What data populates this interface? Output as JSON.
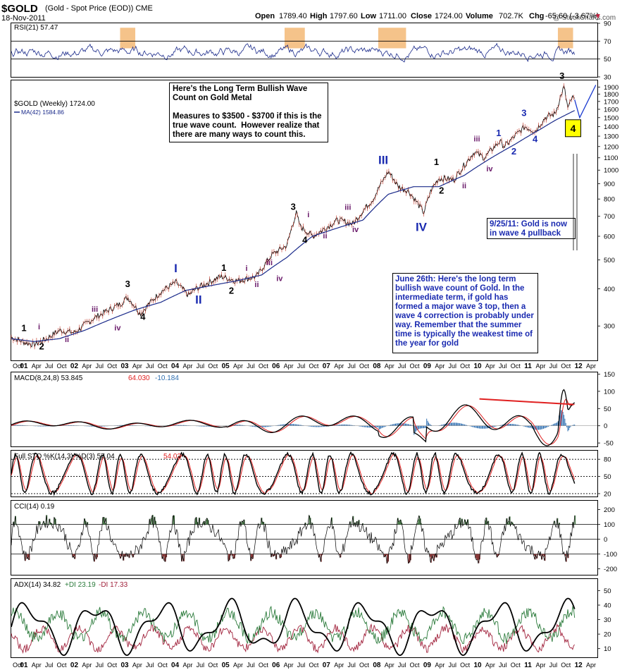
{
  "chart_data": {
    "type": "line",
    "symbol": "$GOLD",
    "title": "(Gold - Spot Price (EOD)) CME",
    "date": "18-Nov-2011",
    "watermark": "@ StockCharts.com",
    "quote": {
      "open_label": "Open",
      "open": "1789.40",
      "high_label": "High",
      "high": "1797.60",
      "low_label": "Low",
      "low": "1711.00",
      "close_label": "Close",
      "close": "1724.00",
      "volume_label": "Volume",
      "volume": "702.7K",
      "chg_label": "Chg",
      "chg": "-65.60 (-3.67%)"
    },
    "colors": {
      "price": "#000000",
      "ma": "#1a2a8a",
      "rsi": "#1a2a8a",
      "macd_signal": "#e02020",
      "histogram": "#2f6fb0",
      "cci_fill": "#4a7a4a",
      "adx_pos_di": "#2a7a3a",
      "adx_neg_di": "#a0203a",
      "highlight": "#f5c38a",
      "wave_blue": "#1a2ab0",
      "wave_purple": "#6a1a6a",
      "box_yellow": "#ffff00"
    },
    "x_axis": {
      "ticks": [
        "Oct",
        "01",
        "Apr",
        "Jul",
        "Oct",
        "02",
        "Apr",
        "Jul",
        "Oct",
        "03",
        "Apr",
        "Jul",
        "Oct",
        "04",
        "Apr",
        "Jul",
        "Oct",
        "05",
        "Apr",
        "Jul",
        "Oct",
        "06",
        "Apr",
        "Jul",
        "Oct",
        "07",
        "Apr",
        "Jul",
        "Oct",
        "08",
        "Apr",
        "Jul",
        "Oct",
        "09",
        "Apr",
        "Jul",
        "Oct",
        "10",
        "Apr",
        "Jul",
        "Oct",
        "11",
        "Apr",
        "Jul",
        "Oct",
        "12",
        "Apr"
      ],
      "start": 2000.75,
      "end": 2012.33
    },
    "panels": {
      "rsi": {
        "label": "RSI(21) 57.47",
        "ylim": [
          30,
          90
        ],
        "ticks": [
          "90",
          "70",
          "50",
          "30"
        ],
        "levels": [
          70,
          50
        ],
        "highlights": [
          [
            2002.9,
            2003.2
          ],
          [
            2006.15,
            2006.55
          ],
          [
            2008.0,
            2008.55
          ],
          [
            2011.55,
            2011.85
          ]
        ]
      },
      "price": {
        "label": "$GOLD (Weekly) 1724.00",
        "ma_label": "MA(42) 1584.86",
        "scale": "log",
        "ylim": [
          230,
          2000
        ],
        "ticks": [
          "1900",
          "1800",
          "1700",
          "1600",
          "1500",
          "1400",
          "1300",
          "1200",
          "1100",
          "1000",
          "900",
          "800",
          "700",
          "600",
          "500",
          "400",
          "300"
        ],
        "series": [
          {
            "x": [
              2000.75,
              2001.0,
              2001.2,
              2001.45,
              2001.7,
              2002.0,
              2002.4,
              2002.9,
              2003.05,
              2003.3,
              2003.7,
              2004.0,
              2004.25,
              2004.4,
              2004.9,
              2005.2,
              2005.6,
              2005.9,
              2006.2,
              2006.38,
              2006.45,
              2006.7,
              2006.9,
              2007.2,
              2007.5,
              2007.9,
              2008.2,
              2008.4,
              2008.6,
              2008.9,
              2009.05,
              2009.2,
              2009.5,
              2009.9,
              2010.1,
              2010.4,
              2010.5,
              2010.9,
              2011.1,
              2011.3,
              2011.5,
              2011.67,
              2011.75,
              2011.83,
              2011.88
            ],
            "values": [
              275,
              265,
              260,
              272,
              290,
              285,
              320,
              355,
              375,
              330,
              390,
              420,
              380,
              400,
              440,
              425,
              440,
              520,
              560,
              720,
              650,
              600,
              630,
              680,
              660,
              800,
              990,
              880,
              850,
              720,
              860,
              940,
              930,
              1150,
              1100,
              1250,
              1200,
              1400,
              1350,
              1500,
              1550,
              1900,
              1600,
              1750,
              1724
            ]
          },
          {
            "x": [
              2000.75,
              2001.2,
              2001.7,
              2002.2,
              2002.7,
              2003.2,
              2003.7,
              2004.2,
              2004.7,
              2005.2,
              2005.7,
              2006.2,
              2006.7,
              2007.2,
              2007.7,
              2008.2,
              2008.7,
              2009.2,
              2009.7,
              2010.2,
              2010.7,
              2011.2,
              2011.5,
              2011.88
            ],
            "values": [
              272,
              266,
              272,
              290,
              315,
              340,
              360,
              395,
              410,
              425,
              445,
              510,
              600,
              640,
              680,
              830,
              880,
              880,
              960,
              1090,
              1220,
              1370,
              1470,
              1584.86
            ]
          }
        ],
        "wave_labels": [
          {
            "text": "1",
            "x": 2001.0,
            "y": 288,
            "style": "black"
          },
          {
            "text": "i",
            "x": 2001.3,
            "y": 292,
            "style": "purple"
          },
          {
            "text": "2",
            "x": 2001.35,
            "y": 250,
            "style": "black"
          },
          {
            "text": "ii",
            "x": 2001.85,
            "y": 265,
            "style": "purple"
          },
          {
            "text": "iii",
            "x": 2002.4,
            "y": 335,
            "style": "purple"
          },
          {
            "text": "iv",
            "x": 2002.85,
            "y": 290,
            "style": "purple"
          },
          {
            "text": "3",
            "x": 2003.05,
            "y": 405,
            "style": "black"
          },
          {
            "text": "4",
            "x": 2003.35,
            "y": 315,
            "style": "black"
          },
          {
            "text": "I",
            "x": 2004.0,
            "y": 455,
            "style": "blue"
          },
          {
            "text": "II",
            "x": 2004.45,
            "y": 357,
            "style": "blue"
          },
          {
            "text": "1",
            "x": 2004.95,
            "y": 460,
            "style": "black"
          },
          {
            "text": "i",
            "x": 2005.4,
            "y": 460,
            "style": "purple"
          },
          {
            "text": "2",
            "x": 2005.1,
            "y": 385,
            "style": "black"
          },
          {
            "text": "ii",
            "x": 2005.6,
            "y": 405,
            "style": "purple"
          },
          {
            "text": "iii",
            "x": 2005.85,
            "y": 480,
            "style": "purple"
          },
          {
            "text": "iv",
            "x": 2006.05,
            "y": 425,
            "style": "purple"
          },
          {
            "text": "3",
            "x": 2006.32,
            "y": 735,
            "style": "black"
          },
          {
            "text": "i",
            "x": 2006.62,
            "y": 695,
            "style": "purple"
          },
          {
            "text": "4",
            "x": 2006.55,
            "y": 570,
            "style": "black"
          },
          {
            "text": "ii",
            "x": 2006.95,
            "y": 590,
            "style": "purple"
          },
          {
            "text": "iii",
            "x": 2007.4,
            "y": 735,
            "style": "purple"
          },
          {
            "text": "iv",
            "x": 2007.55,
            "y": 620,
            "style": "purple"
          },
          {
            "text": "III",
            "x": 2008.1,
            "y": 1050,
            "style": "blue"
          },
          {
            "text": "IV",
            "x": 2008.85,
            "y": 625,
            "style": "blue"
          },
          {
            "text": "1",
            "x": 2009.15,
            "y": 1040,
            "style": "black"
          },
          {
            "text": "2",
            "x": 2009.25,
            "y": 835,
            "style": "black"
          },
          {
            "text": "ii",
            "x": 2009.7,
            "y": 870,
            "style": "purple"
          },
          {
            "text": "iii",
            "x": 2009.95,
            "y": 1250,
            "style": "purple"
          },
          {
            "text": "iv",
            "x": 2010.2,
            "y": 990,
            "style": "purple"
          },
          {
            "text": "1",
            "x": 2010.38,
            "y": 1300,
            "style": "blue"
          },
          {
            "text": "2",
            "x": 2010.68,
            "y": 1130,
            "style": "blue"
          },
          {
            "text": "3",
            "x": 2010.88,
            "y": 1520,
            "style": "blue"
          },
          {
            "text": "4",
            "x": 2011.1,
            "y": 1240,
            "style": "blue"
          },
          {
            "text": "3",
            "x": 2011.63,
            "y": 2020,
            "style": "black"
          },
          {
            "text": "4",
            "x": 2011.85,
            "y": 1390,
            "style": "yellow-box"
          }
        ],
        "projection": {
          "x": [
            2011.88,
            2011.98,
            2012.3
          ],
          "values": [
            1724,
            1500,
            1930
          ]
        },
        "annotations": [
          {
            "id": "note_top",
            "text": "Here's the Long Term Bullish Wave Count on Gold Metal\n\nMeasures to $3500 - $3700 if this is the true wave count.  However realize that there are many ways to count this."
          },
          {
            "id": "note_sep",
            "text": "9/25/11: Gold is now in wave 4 pullback"
          },
          {
            "id": "note_june",
            "text": "June 26th: Here's the long term bullish wave count of Gold.  In the intermediate term, if gold has formed a major wave 3 top, then a wave 4 correction is probably under way.  Remember that the summer time is typically the weakest time of the year for gold"
          }
        ]
      },
      "macd": {
        "label": "MACD(8,24,8) 53.845",
        "signal": "64.030",
        "hist": "-10.184",
        "ylim": [
          -60,
          155
        ],
        "ticks": [
          "150",
          "100",
          "50",
          "0",
          "-50"
        ],
        "zero": 0,
        "trendline": {
          "x": [
            2010.0,
            2011.85
          ],
          "values": [
            78,
            62
          ]
        }
      },
      "sto": {
        "label": "Full STO %K(14,3) %D(3) 57.04",
        "d": "54.02",
        "ylim": [
          15,
          95
        ],
        "ticks": [
          "80",
          "50",
          "20"
        ],
        "levels": [
          80,
          50,
          20
        ]
      },
      "cci": {
        "label": "CCI(14) 0.19",
        "ylim": [
          -240,
          260
        ],
        "ticks": [
          "200",
          "100",
          "0",
          "-100",
          "-200"
        ],
        "levels": [
          100,
          0,
          -100
        ]
      },
      "adx": {
        "label": "ADX(14) 34.82",
        "pos_di": "+DI 23.19",
        "neg_di": "-DI 17.33",
        "ylim": [
          4,
          58
        ],
        "ticks": [
          "50",
          "40",
          "30",
          "20",
          "10"
        ]
      }
    }
  }
}
